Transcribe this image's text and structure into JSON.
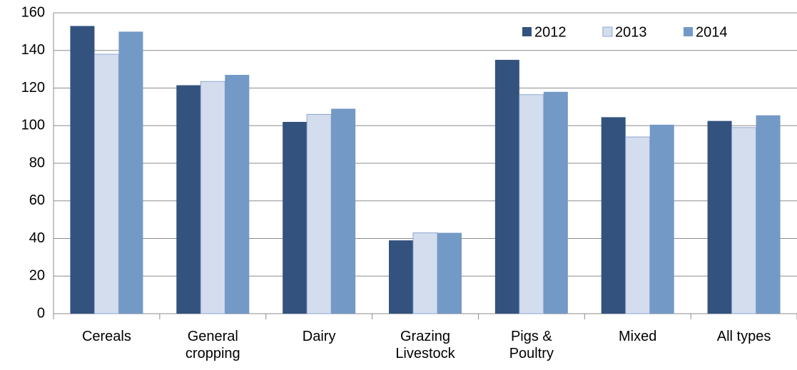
{
  "chart_data": {
    "type": "bar",
    "categories": [
      "Cereals",
      "General cropping",
      "Dairy",
      "Grazing Livestock",
      "Pigs & Poultry",
      "Mixed",
      "All types"
    ],
    "series": [
      {
        "name": "2012",
        "color": "#34527e",
        "values": [
          153,
          121.5,
          102,
          39,
          135,
          104.5,
          102.5
        ]
      },
      {
        "name": "2013",
        "color": "#d3ddee",
        "values": [
          138,
          123.5,
          106,
          43,
          116.5,
          94,
          99
        ]
      },
      {
        "name": "2014",
        "color": "#7399c6",
        "values": [
          150,
          127,
          109,
          43,
          118,
          100.5,
          105.5
        ]
      }
    ],
    "ylim": [
      0,
      160
    ],
    "yticks": [
      0,
      20,
      40,
      60,
      80,
      100,
      120,
      140,
      160
    ],
    "grid": true,
    "legend": "top-right"
  }
}
